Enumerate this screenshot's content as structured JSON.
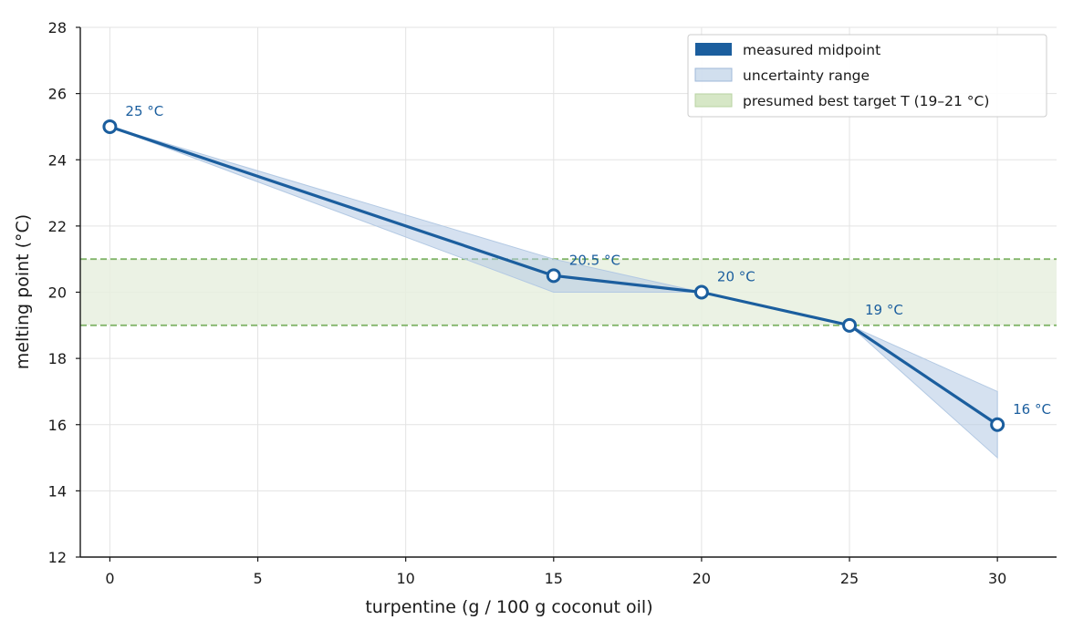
{
  "colors": {
    "line": "#1b5e9e",
    "band_fill": "#b3c9e3",
    "target_fill": "#e8f0df",
    "target_line": "#82b56a",
    "grid": "#e3e3e3",
    "axis": "#1a1a1a"
  },
  "chart_data": {
    "type": "line",
    "title": "",
    "xlabel": "turpentine (g / 100 g coconut oil)",
    "ylabel": "melting point (°C)",
    "xlim": [
      -1,
      32
    ],
    "ylim": [
      12,
      28
    ],
    "xticks": [
      0,
      5,
      10,
      15,
      20,
      25,
      30
    ],
    "yticks": [
      12,
      14,
      16,
      18,
      20,
      22,
      24,
      26,
      28
    ],
    "grid": true,
    "legend_position": "top-right",
    "series": [
      {
        "name": "measured midpoint",
        "x": [
          0,
          15,
          20,
          25,
          30
        ],
        "y": [
          25,
          20.5,
          20,
          19,
          16
        ],
        "labels": [
          "25 °C",
          "20.5 °C",
          "20 °C",
          "19 °C",
          "16 °C"
        ]
      }
    ],
    "uncertainty": {
      "name": "uncertainty range",
      "x": [
        0,
        15,
        20,
        25,
        30
      ],
      "low": [
        25,
        20,
        20,
        19,
        15
      ],
      "high": [
        25,
        21,
        20,
        19,
        17
      ]
    },
    "target_band": {
      "name": "presumed best target T (19–21 °C)",
      "low": 19,
      "high": 21
    }
  }
}
